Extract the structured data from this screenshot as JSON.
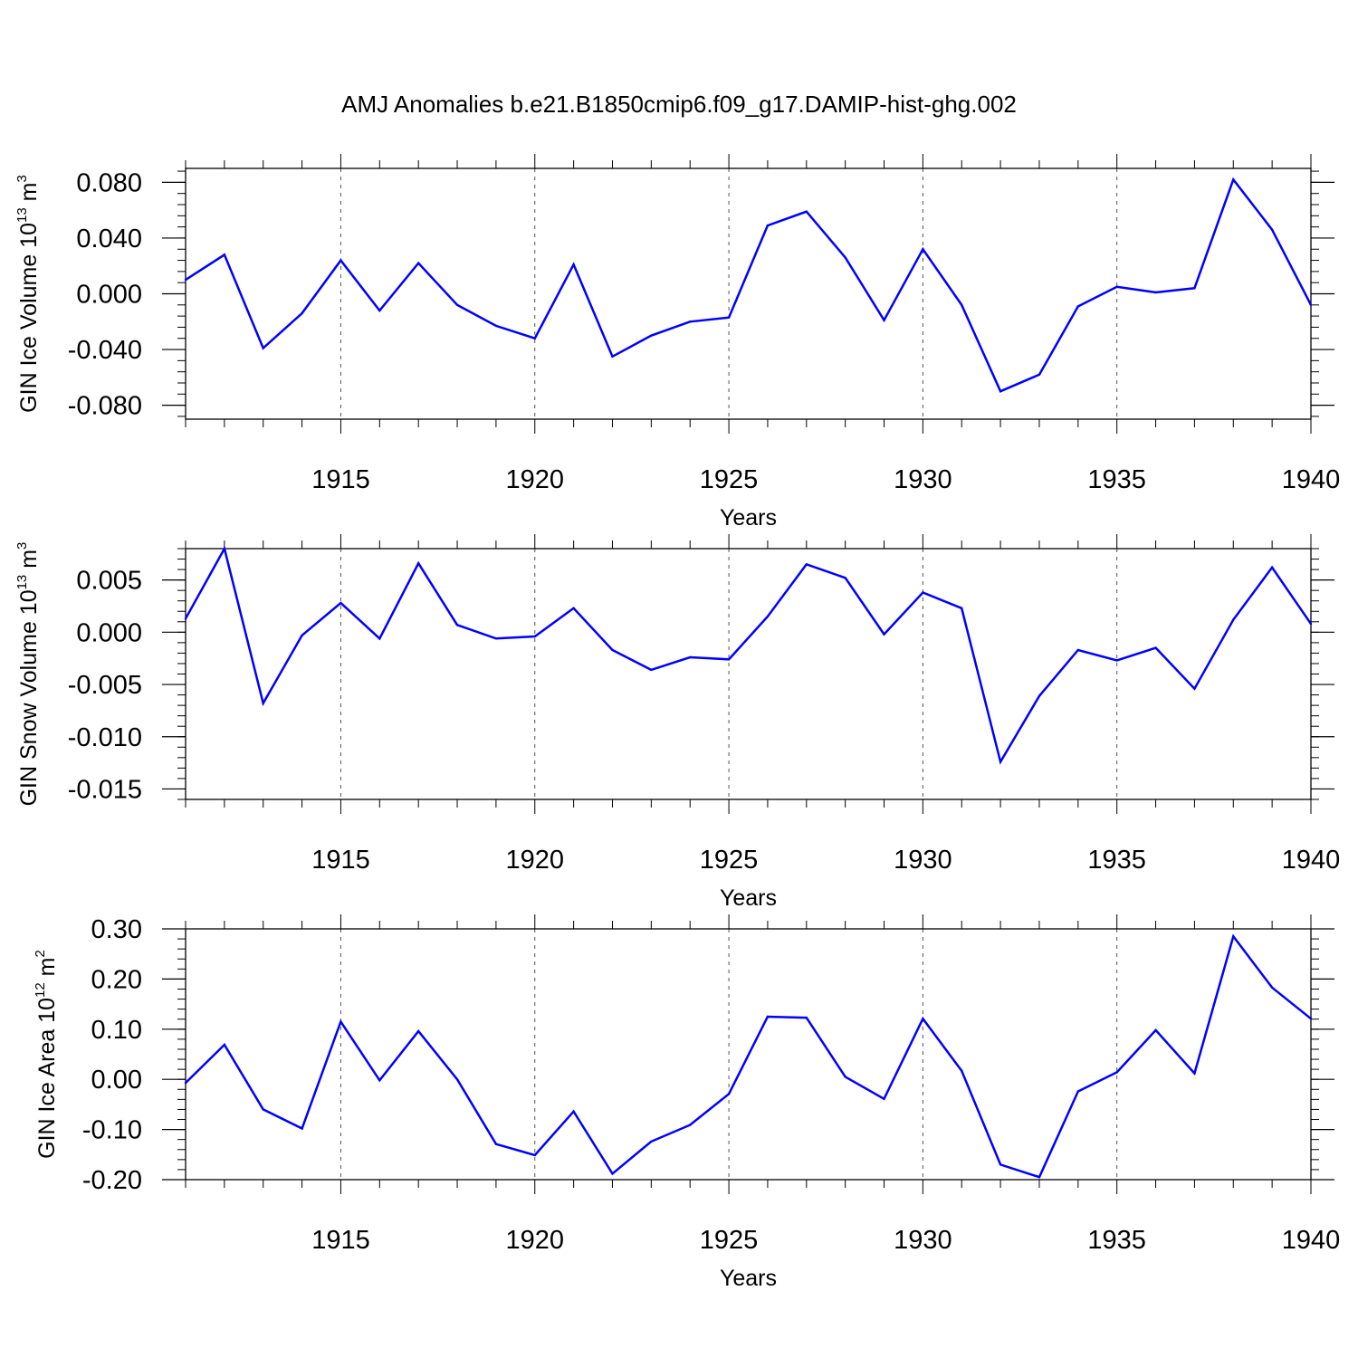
{
  "title": "AMJ Anomalies b.e21.B1850cmip6.f09_g17.DAMIP-hist-ghg.002",
  "line_color": "#0000ff",
  "chart_data": [
    {
      "type": "line",
      "ylabel_base": "GIN Ice Volume 10",
      "ylabel_exp": "13",
      "ylabel_unit": " m",
      "ylabel_unit_exp": "3",
      "xlabel": "Years",
      "xlim": [
        1911,
        1940
      ],
      "ylim": [
        -0.09,
        0.09
      ],
      "x_ticks": [
        1915,
        1920,
        1925,
        1930,
        1935,
        1940
      ],
      "y_ticks": [
        -0.08,
        -0.04,
        0.0,
        0.04,
        0.08
      ],
      "y_tick_labels": [
        "-0.080",
        "-0.040",
        "0.000",
        "0.040",
        "0.080"
      ],
      "grid": "vertical dashed at major x ticks",
      "x": [
        1911,
        1912,
        1913,
        1914,
        1915,
        1916,
        1917,
        1918,
        1919,
        1920,
        1921,
        1922,
        1923,
        1924,
        1925,
        1926,
        1927,
        1928,
        1929,
        1930,
        1931,
        1932,
        1933,
        1934,
        1935,
        1936,
        1937,
        1938,
        1939,
        1940
      ],
      "y": [
        0.01,
        0.028,
        -0.039,
        -0.014,
        0.024,
        -0.012,
        0.022,
        -0.008,
        -0.023,
        -0.032,
        0.021,
        -0.045,
        -0.03,
        -0.02,
        -0.017,
        0.049,
        0.059,
        0.026,
        -0.019,
        0.032,
        -0.008,
        -0.07,
        -0.058,
        -0.009,
        0.005,
        0.001,
        0.004,
        0.082,
        0.046,
        -0.008
      ]
    },
    {
      "type": "line",
      "ylabel_base": "GIN Snow Volume 10",
      "ylabel_exp": "13",
      "ylabel_unit": " m",
      "ylabel_unit_exp": "3",
      "xlabel": "Years",
      "xlim": [
        1911,
        1940
      ],
      "ylim": [
        -0.016,
        0.008
      ],
      "x_ticks": [
        1915,
        1920,
        1925,
        1930,
        1935,
        1940
      ],
      "y_ticks": [
        -0.015,
        -0.01,
        -0.005,
        0.0,
        0.005
      ],
      "y_tick_labels": [
        "-0.015",
        "-0.010",
        "-0.005",
        "0.000",
        "0.005"
      ],
      "grid": "vertical dashed at major x ticks",
      "x": [
        1911,
        1912,
        1913,
        1914,
        1915,
        1916,
        1917,
        1918,
        1919,
        1920,
        1921,
        1922,
        1923,
        1924,
        1925,
        1926,
        1927,
        1928,
        1929,
        1930,
        1931,
        1932,
        1933,
        1934,
        1935,
        1936,
        1937,
        1938,
        1939,
        1940
      ],
      "y": [
        0.0013,
        0.008,
        -0.0068,
        -0.0003,
        0.0028,
        -0.0006,
        0.0066,
        0.0007,
        -0.0006,
        -0.0004,
        0.0023,
        -0.0017,
        -0.0036,
        -0.0024,
        -0.0026,
        0.0015,
        0.0065,
        0.0052,
        -0.0002,
        0.0038,
        0.0023,
        -0.0124,
        -0.0061,
        -0.0017,
        -0.0027,
        -0.0015,
        -0.0054,
        0.0012,
        0.0062,
        0.0008
      ]
    },
    {
      "type": "line",
      "ylabel_base": "GIN Ice Area 10",
      "ylabel_exp": "12",
      "ylabel_unit": " m",
      "ylabel_unit_exp": "2",
      "xlabel": "Years",
      "xlim": [
        1911,
        1940
      ],
      "ylim": [
        -0.2,
        0.3
      ],
      "x_ticks": [
        1915,
        1920,
        1925,
        1930,
        1935,
        1940
      ],
      "y_ticks": [
        -0.2,
        -0.1,
        0.0,
        0.1,
        0.2,
        0.3
      ],
      "y_tick_labels": [
        "-0.20",
        "-0.10",
        "0.00",
        "0.10",
        "0.20",
        "0.30"
      ],
      "grid": "vertical dashed at major x ticks",
      "x": [
        1911,
        1912,
        1913,
        1914,
        1915,
        1916,
        1917,
        1918,
        1919,
        1920,
        1921,
        1922,
        1923,
        1924,
        1925,
        1926,
        1927,
        1928,
        1929,
        1930,
        1931,
        1932,
        1933,
        1934,
        1935,
        1936,
        1937,
        1938,
        1939,
        1940
      ],
      "y": [
        -0.007,
        0.069,
        -0.06,
        -0.098,
        0.115,
        -0.002,
        0.096,
        0.0,
        -0.129,
        -0.151,
        -0.064,
        -0.188,
        -0.124,
        -0.091,
        -0.029,
        0.125,
        0.123,
        0.005,
        -0.039,
        0.121,
        0.017,
        -0.17,
        -0.195,
        -0.024,
        0.014,
        0.098,
        0.012,
        0.285,
        0.183,
        0.121
      ]
    }
  ]
}
